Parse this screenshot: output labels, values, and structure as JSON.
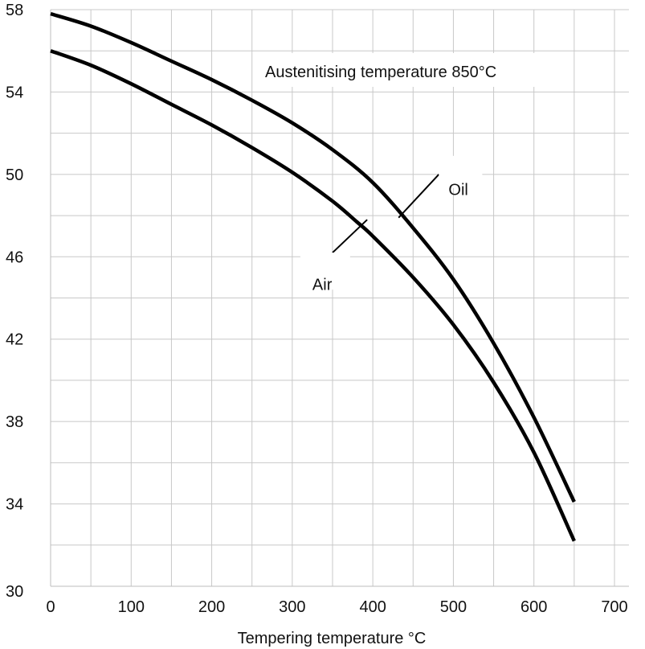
{
  "chart_data": {
    "type": "line",
    "title": "",
    "annotation": "Austenitising temperature 850°C",
    "xlabel": "Tempering temperature °C",
    "ylabel": "",
    "xlim": [
      0,
      700
    ],
    "ylim": [
      30,
      58
    ],
    "x_ticks": [
      0,
      100,
      200,
      300,
      400,
      500,
      600,
      700
    ],
    "y_ticks": [
      30,
      34,
      38,
      42,
      46,
      50,
      54,
      58
    ],
    "x_minor_step": 50,
    "y_minor_step": 2,
    "grid": true,
    "series": [
      {
        "name": "Oil",
        "x": [
          0,
          50,
          100,
          150,
          200,
          250,
          300,
          350,
          400,
          450,
          500,
          550,
          600,
          650
        ],
        "y": [
          57.8,
          57.2,
          56.4,
          55.5,
          54.6,
          53.6,
          52.5,
          51.2,
          49.6,
          47.4,
          44.9,
          41.8,
          38.2,
          34.1
        ]
      },
      {
        "name": "Air",
        "x": [
          0,
          50,
          100,
          150,
          200,
          250,
          300,
          350,
          380,
          400,
          450,
          500,
          550,
          600,
          650
        ],
        "y": [
          56.0,
          55.3,
          54.4,
          53.4,
          52.4,
          51.3,
          50.1,
          48.7,
          47.7,
          47.0,
          45.0,
          42.7,
          39.9,
          36.5,
          32.2
        ]
      }
    ]
  }
}
